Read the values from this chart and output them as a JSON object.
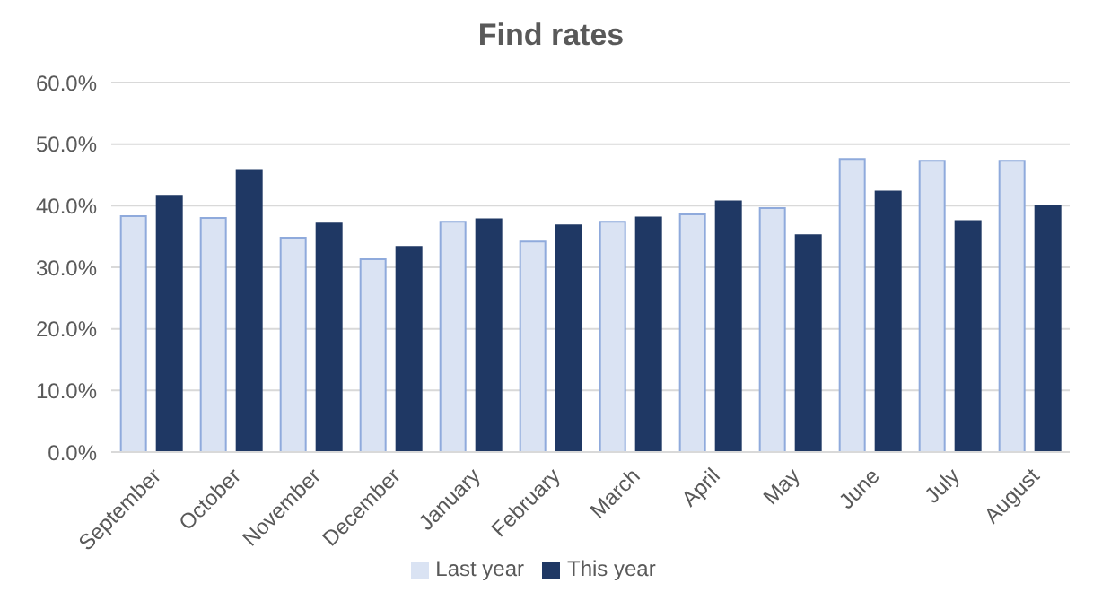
{
  "chart_data": {
    "type": "bar",
    "title": "Find rates",
    "categories": [
      "September",
      "October",
      "November",
      "December",
      "January",
      "February",
      "March",
      "April",
      "May",
      "June",
      "July",
      "August"
    ],
    "series": [
      {
        "name": "Last year",
        "color": "#dae3f3",
        "values": [
          38.3,
          38.0,
          34.8,
          31.3,
          37.4,
          34.2,
          37.4,
          38.6,
          39.6,
          47.6,
          47.3,
          47.3
        ]
      },
      {
        "name": "This year",
        "color": "#1f3864",
        "values": [
          41.6,
          45.8,
          37.1,
          33.3,
          37.8,
          36.8,
          38.1,
          40.7,
          35.2,
          42.3,
          37.5,
          40.0
        ]
      }
    ],
    "ylim": [
      0,
      60
    ],
    "yticks": [
      {
        "value": 0,
        "label": "0.0%"
      },
      {
        "value": 10,
        "label": "10.0%"
      },
      {
        "value": 20,
        "label": "20.0%"
      },
      {
        "value": 30,
        "label": "30.0%"
      },
      {
        "value": 40,
        "label": "40.0%"
      },
      {
        "value": 50,
        "label": "50.0%"
      },
      {
        "value": 60,
        "label": "60.0%"
      }
    ],
    "grid": "y",
    "legend": "bottom"
  }
}
